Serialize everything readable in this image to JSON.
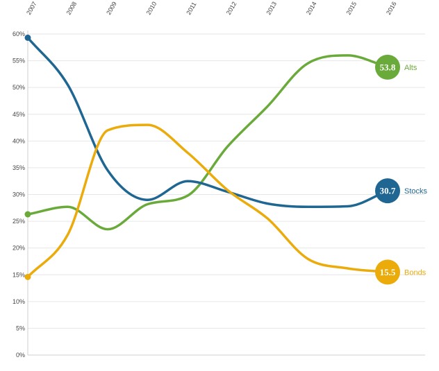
{
  "chart_data": {
    "type": "line",
    "x": [
      "2007",
      "2008",
      "2009",
      "2010",
      "2011",
      "2012",
      "2013",
      "2014",
      "2015",
      "2016"
    ],
    "y_ticks": [
      "0%",
      "5%",
      "10%",
      "15%",
      "20%",
      "25%",
      "30%",
      "35%",
      "40%",
      "45%",
      "50%",
      "55%",
      "60%"
    ],
    "ylim": [
      0,
      60
    ],
    "y_unit": "%",
    "grid": true,
    "series": [
      {
        "name": "Alts",
        "color": "#6aaa3a",
        "end_label": "53.8",
        "values": [
          26.3,
          27.7,
          23.5,
          28.2,
          29.8,
          39.0,
          46.5,
          54.5,
          56.0,
          53.8
        ]
      },
      {
        "name": "Stocks",
        "color": "#1f6693",
        "end_label": "30.7",
        "values": [
          59.3,
          50.5,
          34.5,
          29.0,
          32.5,
          30.5,
          28.3,
          27.7,
          27.8,
          30.7
        ]
      },
      {
        "name": "Bonds",
        "color": "#eaab0b",
        "end_label": "15.5",
        "values": [
          14.6,
          22.5,
          42.0,
          43.0,
          37.8,
          30.8,
          25.5,
          18.0,
          16.2,
          15.5
        ]
      }
    ]
  }
}
